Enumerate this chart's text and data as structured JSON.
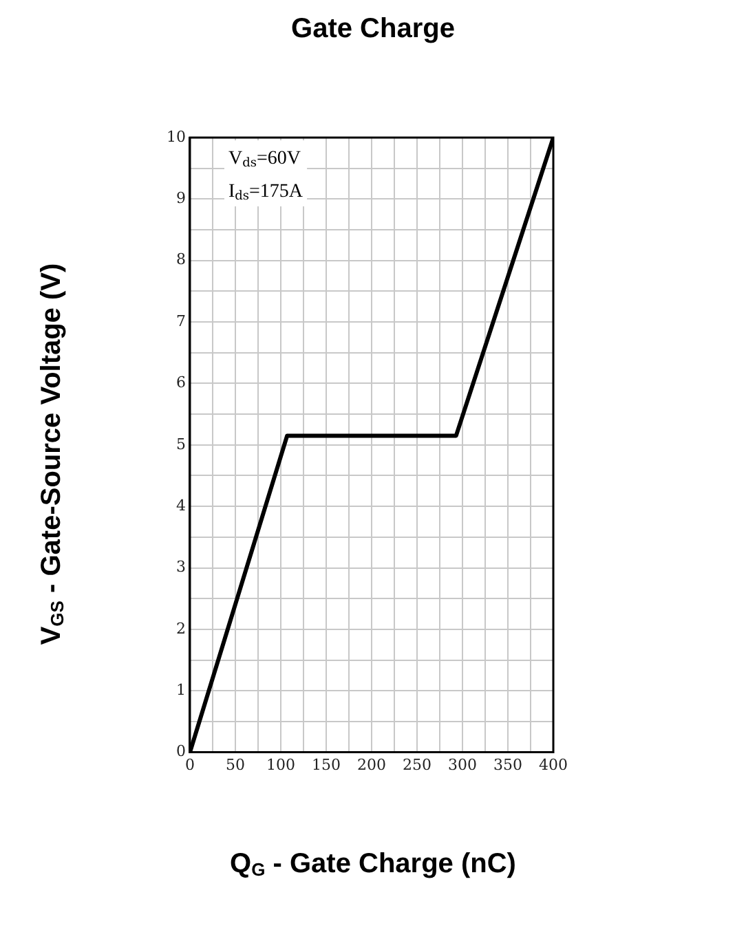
{
  "chart_data": {
    "type": "line",
    "title": "Gate Charge",
    "xlabel": "Q$_{G}$ - Gate Charge (nC)",
    "ylabel": "V$_{GS}$ - Gate-Source Voltage (V)",
    "annotations": [
      "V$_{ds}$=60V",
      "I$_{ds}$=175A"
    ],
    "series": [
      {
        "color": "#000000",
        "x": [
          0,
          107,
          293,
          400
        ],
        "values": [
          0,
          5.15,
          5.15,
          10
        ]
      }
    ],
    "xlim": [
      0,
      400
    ],
    "xticks": [
      0,
      {
        "value": 25,
        "label": null
      },
      50,
      {
        "value": 75,
        "label": null
      },
      100,
      {
        "value": 125,
        "label": null
      },
      150,
      {
        "value": 175,
        "label": null
      },
      200,
      {
        "value": 225,
        "label": null
      },
      250,
      {
        "value": 275,
        "label": null
      },
      300,
      {
        "value": 325,
        "label": null
      },
      350,
      {
        "value": 375,
        "label": null
      },
      400
    ],
    "ylim": [
      0,
      10
    ],
    "yticks": [
      0,
      {
        "value": 0.5,
        "label": null
      },
      1,
      {
        "value": 1.5,
        "label": null
      },
      2,
      {
        "value": 2.5,
        "label": null
      },
      3,
      {
        "value": 3.5,
        "label": null
      },
      4,
      {
        "value": 4.5,
        "label": null
      },
      5,
      {
        "value": 5.5,
        "label": null
      },
      6,
      {
        "value": 6.5,
        "label": null
      },
      7,
      {
        "value": 7.5,
        "label": null
      },
      8,
      {
        "value": 8.5,
        "label": null
      },
      9,
      {
        "value": 9.5,
        "label": null
      },
      10
    ],
    "grid": true,
    "marker": "none",
    "line_style": "solid",
    "legend": false
  }
}
